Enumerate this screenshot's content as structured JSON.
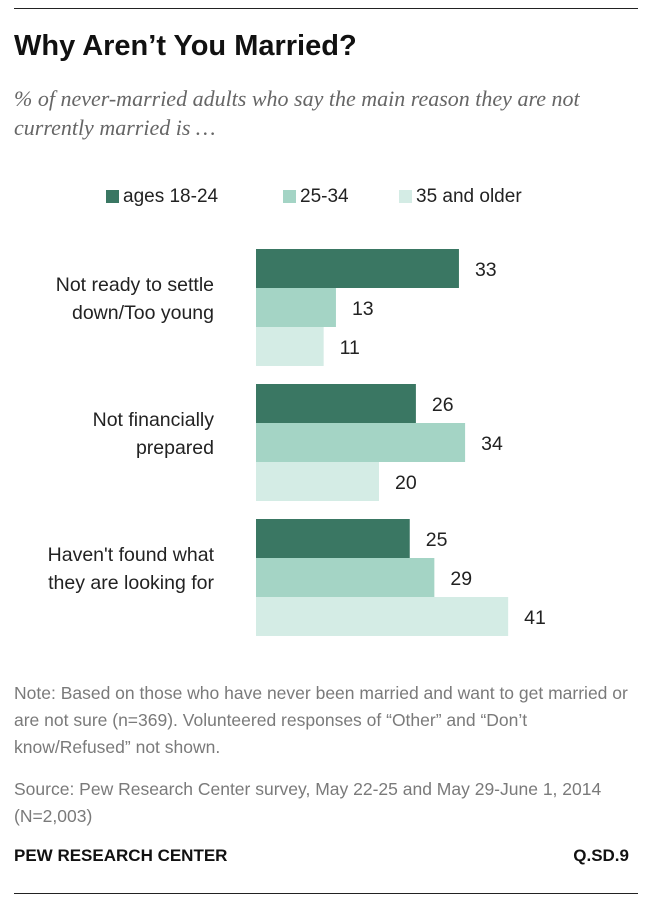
{
  "title": "Why Aren’t You Married?",
  "subtitle": "% of never-married adults who say the main reason they are not currently married is …",
  "note": "Note: Based on those who have never been married and want to get married or are not sure (n=369). Volunteered responses of “Other” and “Don’t know/Refused” not shown.",
  "source": "Source: Pew Research Center survey, May 22-25 and May 29-June 1, 2014 (N=2,003)",
  "footer": {
    "org": "PEW RESEARCH CENTER",
    "code": "Q.SD.9"
  },
  "colors": {
    "series": [
      "#3a7763",
      "#a4d4c5",
      "#d4ece5"
    ],
    "text": "#222222"
  },
  "chart_data": {
    "type": "bar",
    "orientation": "horizontal",
    "title": "Why Aren’t You Married?",
    "categories": [
      [
        "Not ready to settle",
        "down/Too young"
      ],
      [
        "Not financially",
        "prepared"
      ],
      [
        "Haven't found what",
        "they are looking for"
      ]
    ],
    "series": [
      {
        "name": "ages 18-24",
        "values": [
          33,
          26,
          25
        ]
      },
      {
        "name": "25-34",
        "values": [
          13,
          34,
          29
        ]
      },
      {
        "name": "35 and older",
        "values": [
          11,
          20,
          41
        ]
      }
    ],
    "xlim": [
      0,
      100
    ],
    "xlabel": "",
    "ylabel": "",
    "grid": false,
    "legend_position": "top"
  }
}
